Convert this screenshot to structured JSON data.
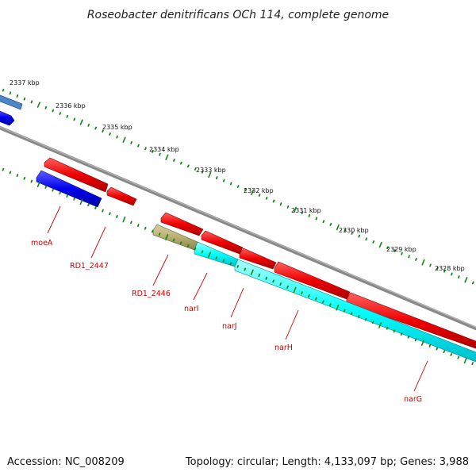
{
  "title": "Roseobacter denitrificans OCh 114, complete genome",
  "footer": {
    "accession": "Accession: NC_008209",
    "topology": "Topology: circular; Length: 4,133,097 bp; Genes: 3,988"
  },
  "kbp_ticks": [
    "2337 kbp",
    "2336 kbp",
    "2335 kbp",
    "2334 kbp",
    "2333 kbp",
    "2332 kbp",
    "2331 kbp",
    "2330 kbp",
    "2329 kbp",
    "2328 kbp"
  ],
  "gene_labels": [
    "moeA",
    "RD1_2447",
    "RD1_2446",
    "narI",
    "narJ",
    "narH",
    "narG"
  ],
  "colors": {
    "forward_gene": "#ee0000",
    "reverse_gene": "#0000ee",
    "rna_gene": "#00ffff",
    "other_gene": "#b8b070",
    "backbone": "#808080",
    "tick": "#118811",
    "label": "#cc0000"
  }
}
